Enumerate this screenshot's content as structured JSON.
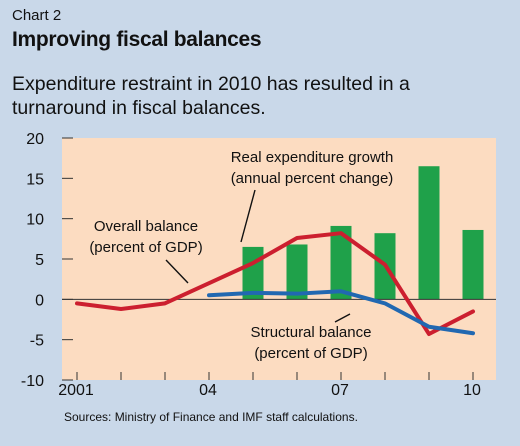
{
  "header": {
    "chart_number": "Chart 2",
    "title": "Improving fiscal balances",
    "subtitle": "Expenditure restraint in 2010 has resulted in a turnaround in fiscal balances."
  },
  "footer": {
    "source": "Sources: Ministry of Finance and IMF staff calculations."
  },
  "colors": {
    "background": "#c9d8e9",
    "plot_area": "#fcdcc1",
    "bars": "#1fa14a",
    "overall_balance": "#cc1f2f",
    "structural_balance": "#2168b1"
  },
  "chart_data": {
    "type": "bar+line",
    "title": "Improving fiscal balances",
    "subtitle": "Expenditure restraint in 2010 has resulted in a turnaround in fiscal balances.",
    "x": [
      2001,
      2002,
      2003,
      2004,
      2005,
      2006,
      2007,
      2008,
      2009,
      2010
    ],
    "x_tick_labels": [
      {
        "x": 2001,
        "label": "2001"
      },
      {
        "x": 2004,
        "label": "04"
      },
      {
        "x": 2007,
        "label": "07"
      },
      {
        "x": 2010,
        "label": "10"
      }
    ],
    "ylim": [
      -10,
      20
    ],
    "y_ticks": [
      -10,
      -5,
      0,
      5,
      10,
      15,
      20
    ],
    "y_tick_labels": [
      "-10",
      "-5",
      "0",
      "5",
      "10",
      "15",
      "20"
    ],
    "grid": false,
    "zero_line": true,
    "series": [
      {
        "name": "Real expenditure growth",
        "annotation": [
          "Real expenditure growth",
          "(annual percent change)"
        ],
        "kind": "bar",
        "x": [
          2005,
          2006,
          2007,
          2008,
          2009,
          2010
        ],
        "values": [
          6.5,
          6.8,
          9.1,
          8.2,
          16.5,
          8.6
        ]
      },
      {
        "name": "Overall balance",
        "annotation": [
          "Overall balance",
          "(percent of GDP)"
        ],
        "kind": "line",
        "x": [
          2001,
          2002,
          2003,
          2004,
          2005,
          2006,
          2007,
          2008,
          2009,
          2010
        ],
        "values": [
          -0.5,
          -1.2,
          -0.5,
          2.0,
          4.5,
          7.6,
          8.2,
          4.3,
          -4.3,
          -1.5
        ]
      },
      {
        "name": "Structural balance",
        "annotation": [
          "Structural balance",
          "(percent of GDP)"
        ],
        "kind": "line",
        "x": [
          2004,
          2005,
          2006,
          2007,
          2008,
          2009,
          2010
        ],
        "values": [
          0.5,
          0.8,
          0.7,
          1.0,
          -0.5,
          -3.4,
          -4.2
        ]
      }
    ]
  }
}
